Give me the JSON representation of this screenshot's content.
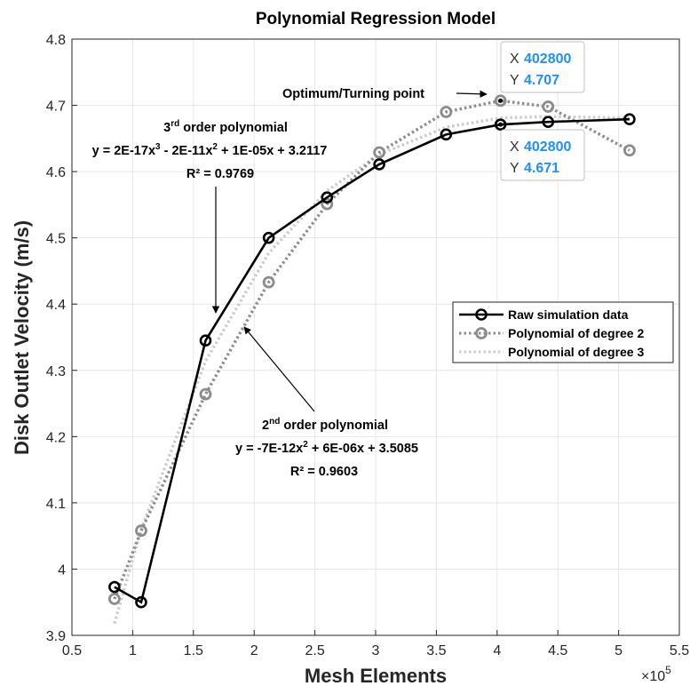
{
  "chart_data": {
    "type": "line",
    "title": "Polynomial Regression Model",
    "xlabel": "Mesh Elements",
    "ylabel": "Disk Outlet Velocity (m/s)",
    "x_exponent": "×10",
    "x_exponent_power": "5",
    "xlim": [
      0.5,
      5.5
    ],
    "ylim": [
      3.9,
      4.8
    ],
    "xticks": [
      "0.5",
      "1",
      "1.5",
      "2",
      "2.5",
      "3",
      "3.5",
      "4",
      "4.5",
      "5",
      "5.5"
    ],
    "yticks": [
      "3.9",
      "4",
      "4.1",
      "4.2",
      "4.3",
      "4.4",
      "4.5",
      "4.6",
      "4.7",
      "4.8"
    ],
    "grid": true,
    "legend_position": "right",
    "series": [
      {
        "name": "Raw simulation data",
        "style": "solid",
        "color": "#000000",
        "x": [
          0.85,
          1.07,
          1.6,
          2.12,
          2.6,
          3.03,
          3.58,
          4.028,
          4.42,
          5.09
        ],
        "y": [
          3.973,
          3.95,
          4.345,
          4.5,
          4.561,
          4.611,
          4.656,
          4.671,
          4.675,
          4.679
        ]
      },
      {
        "name": "Polynomial of degree 2",
        "style": "dotted-markers",
        "color": "#8c8c8c",
        "x": [
          0.85,
          1.07,
          1.6,
          2.12,
          2.6,
          3.03,
          3.58,
          4.028,
          4.42,
          5.09
        ],
        "y": [
          3.955,
          4.058,
          4.264,
          4.433,
          4.551,
          4.629,
          4.69,
          4.707,
          4.698,
          4.632
        ]
      },
      {
        "name": "Polynomial of degree 3",
        "style": "dotted",
        "color": "#cccccc",
        "x": [
          0.85,
          1.07,
          1.6,
          2.12,
          2.6,
          3.03,
          3.58,
          4.028,
          4.42,
          5.09
        ],
        "y": [
          3.918,
          4.06,
          4.314,
          4.477,
          4.571,
          4.626,
          4.667,
          4.681,
          4.683,
          4.681
        ]
      }
    ],
    "annotations": {
      "cubic": {
        "line1_pre": "3",
        "line1_sup": "rd",
        "line1_post": " order polynomial",
        "eq_a": "y = 2E-17x",
        "eq_a_sup": "3",
        "eq_b": " - 2E-11x",
        "eq_b_sup": "2",
        "eq_c": " + 1E-05x + 3.2117",
        "r2": "R² = 0.9769"
      },
      "quadratic": {
        "line1_pre": "2",
        "line1_sup": "nd",
        "line1_post": " order polynomial",
        "eq_a": "y = -7E-12x",
        "eq_a_sup": "2",
        "eq_b": " + 6E-06x + 3.5085",
        "r2": "R² = 0.9603"
      },
      "optimum": "Optimum/Turning point"
    },
    "datatips": [
      {
        "x_key": "X",
        "x_val": "402800",
        "y_key": "Y",
        "y_val": "4.707"
      },
      {
        "x_key": "X",
        "x_val": "402800",
        "y_key": "Y",
        "y_val": "4.671"
      }
    ]
  }
}
